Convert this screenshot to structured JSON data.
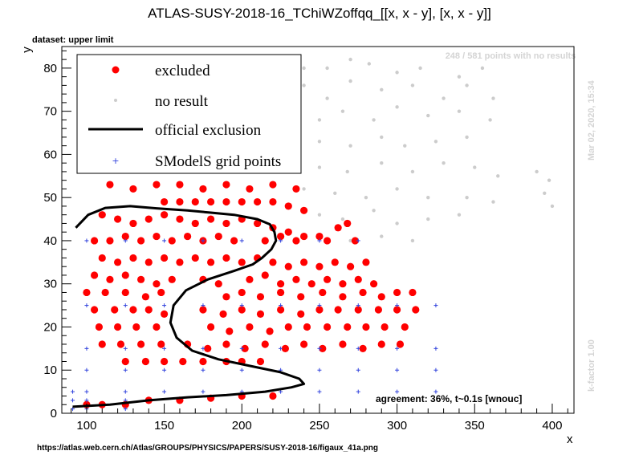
{
  "header": {
    "title": "ATLAS-SUSY-2018-16_TChiWZoffqq_[[x, x - y], [x, x - y]]",
    "dataset_label": "dataset: upper limit",
    "no_results_note": "248 / 581 points with no results",
    "date_stamp": "Mar 02, 2020, 15:34",
    "kfactor_stamp": "k-factor 1.00",
    "agreement_text": "agreement: 36%, t~0.1s [wnouc]",
    "source_url": "https://atlas.web.cern.ch/Atlas/GROUPS/PHYSICS/PAPERS/SUSY-2018-16/figaux_41a.png"
  },
  "legend": {
    "items": [
      {
        "label": "excluded",
        "kind": "red-dot"
      },
      {
        "label": "no result",
        "kind": "grey-dot"
      },
      {
        "label": "official exclusion",
        "kind": "black-line"
      },
      {
        "label": "SModelS grid points",
        "kind": "blue-cross"
      }
    ]
  },
  "colors": {
    "excluded": "#ff0000",
    "no_result": "#cccccc",
    "exclusion_line": "#000000",
    "grid_points": "#3344dd"
  },
  "chart_data": {
    "type": "scatter",
    "title": "ATLAS-SUSY-2018-16_TChiWZoffqq_[[x, x - y], [x, x - y]]",
    "xlabel": "x",
    "ylabel": "y",
    "xlim": [
      84,
      414
    ],
    "ylim": [
      0,
      85
    ],
    "x_ticks": [
      100,
      150,
      200,
      250,
      300,
      350,
      400
    ],
    "y_ticks": [
      0,
      10,
      20,
      30,
      40,
      50,
      60,
      70,
      80
    ],
    "grid": false,
    "legend_position": "top-left",
    "series": [
      {
        "name": "official exclusion",
        "kind": "line",
        "points": [
          [
            91,
            1.5
          ],
          [
            115,
            2
          ],
          [
            140,
            3
          ],
          [
            165,
            3.7
          ],
          [
            190,
            4.2
          ],
          [
            215,
            5
          ],
          [
            232,
            6
          ],
          [
            240,
            6.8
          ],
          [
            237,
            8
          ],
          [
            225,
            9.5
          ],
          [
            205,
            11
          ],
          [
            185,
            12.5
          ],
          [
            168,
            14.5
          ],
          [
            158,
            17.5
          ],
          [
            154,
            21
          ],
          [
            156,
            25
          ],
          [
            164,
            28.5
          ],
          [
            178,
            31
          ],
          [
            195,
            33
          ],
          [
            207,
            34.5
          ],
          [
            213,
            36
          ],
          [
            219,
            38
          ],
          [
            222,
            40
          ],
          [
            221,
            42
          ],
          [
            218,
            43.8
          ],
          [
            210,
            45
          ],
          [
            195,
            46
          ],
          [
            180,
            46.5
          ],
          [
            165,
            47
          ],
          [
            145,
            47.5
          ],
          [
            128,
            48
          ],
          [
            112,
            47.6
          ],
          [
            101,
            46
          ],
          [
            93,
            43
          ]
        ]
      },
      {
        "name": "SModelS grid points",
        "kind": "cross",
        "points": [
          [
            91,
            1
          ],
          [
            100,
            1
          ],
          [
            125,
            1
          ],
          [
            91,
            3
          ],
          [
            100,
            3
          ],
          [
            125,
            3
          ],
          [
            91,
            5
          ],
          [
            100,
            5
          ],
          [
            125,
            5
          ],
          [
            150,
            5
          ],
          [
            175,
            5
          ],
          [
            200,
            5
          ],
          [
            225,
            5
          ],
          [
            250,
            5
          ],
          [
            275,
            5
          ],
          [
            300,
            5
          ],
          [
            325,
            5
          ],
          [
            100,
            10
          ],
          [
            125,
            10
          ],
          [
            150,
            10
          ],
          [
            175,
            10
          ],
          [
            200,
            10
          ],
          [
            225,
            10
          ],
          [
            250,
            10
          ],
          [
            275,
            10
          ],
          [
            300,
            10
          ],
          [
            325,
            10
          ],
          [
            100,
            15
          ],
          [
            125,
            15
          ],
          [
            150,
            15
          ],
          [
            175,
            15
          ],
          [
            200,
            15
          ],
          [
            225,
            15
          ],
          [
            250,
            15
          ],
          [
            275,
            15
          ],
          [
            300,
            15
          ],
          [
            325,
            15
          ],
          [
            100,
            25
          ],
          [
            125,
            25
          ],
          [
            150,
            25
          ],
          [
            175,
            25
          ],
          [
            200,
            25
          ],
          [
            225,
            25
          ],
          [
            250,
            25
          ],
          [
            275,
            25
          ],
          [
            300,
            25
          ],
          [
            325,
            25
          ],
          [
            100,
            40
          ],
          [
            125,
            40
          ],
          [
            150,
            40
          ],
          [
            175,
            40
          ],
          [
            200,
            40
          ],
          [
            225,
            40
          ],
          [
            250,
            40
          ],
          [
            275,
            40
          ],
          [
            100,
            60
          ],
          [
            125,
            60
          ]
        ]
      },
      {
        "name": "no result",
        "kind": "dot",
        "points": [
          [
            220,
            80
          ],
          [
            240,
            80
          ],
          [
            255,
            80
          ],
          [
            270,
            82
          ],
          [
            282,
            81
          ],
          [
            300,
            79
          ],
          [
            315,
            80
          ],
          [
            340,
            78
          ],
          [
            355,
            80
          ],
          [
            240,
            76
          ],
          [
            255,
            73
          ],
          [
            270,
            77
          ],
          [
            290,
            75
          ],
          [
            310,
            76
          ],
          [
            330,
            73
          ],
          [
            345,
            76
          ],
          [
            362,
            73
          ],
          [
            230,
            70
          ],
          [
            250,
            68
          ],
          [
            265,
            70
          ],
          [
            285,
            68
          ],
          [
            300,
            71
          ],
          [
            320,
            69
          ],
          [
            340,
            70
          ],
          [
            360,
            68
          ],
          [
            235,
            64
          ],
          [
            250,
            63
          ],
          [
            270,
            62
          ],
          [
            290,
            64
          ],
          [
            305,
            62
          ],
          [
            325,
            63
          ],
          [
            345,
            64
          ],
          [
            232,
            58
          ],
          [
            250,
            57
          ],
          [
            268,
            56
          ],
          [
            290,
            58
          ],
          [
            310,
            56
          ],
          [
            330,
            58
          ],
          [
            350,
            57
          ],
          [
            365,
            55
          ],
          [
            240,
            52
          ],
          [
            260,
            51
          ],
          [
            280,
            50
          ],
          [
            300,
            52
          ],
          [
            320,
            50
          ],
          [
            345,
            50
          ],
          [
            362,
            49
          ],
          [
            250,
            46
          ],
          [
            265,
            45
          ],
          [
            285,
            47
          ],
          [
            300,
            44
          ],
          [
            320,
            45
          ],
          [
            340,
            46
          ],
          [
            270,
            40
          ],
          [
            290,
            41
          ],
          [
            310,
            40
          ],
          [
            395,
            51
          ],
          [
            398,
            54
          ],
          [
            400,
            48
          ],
          [
            390,
            56
          ]
        ]
      },
      {
        "name": "excluded",
        "kind": "dot",
        "points": [
          [
            100,
            2
          ],
          [
            110,
            2
          ],
          [
            125,
            2
          ],
          [
            140,
            3
          ],
          [
            160,
            3
          ],
          [
            180,
            3.5
          ],
          [
            200,
            4
          ],
          [
            220,
            4
          ],
          [
            110,
            46
          ],
          [
            120,
            45
          ],
          [
            130,
            44
          ],
          [
            140,
            45
          ],
          [
            150,
            46
          ],
          [
            160,
            45
          ],
          [
            170,
            44
          ],
          [
            180,
            45
          ],
          [
            190,
            44
          ],
          [
            200,
            45
          ],
          [
            210,
            44
          ],
          [
            220,
            43
          ],
          [
            230,
            42
          ],
          [
            240,
            41
          ],
          [
            250,
            41
          ],
          [
            255,
            40
          ],
          [
            262,
            43
          ],
          [
            268,
            44
          ],
          [
            273,
            40
          ],
          [
            105,
            40
          ],
          [
            115,
            40
          ],
          [
            125,
            41
          ],
          [
            135,
            40
          ],
          [
            145,
            41
          ],
          [
            155,
            40
          ],
          [
            165,
            41
          ],
          [
            175,
            40
          ],
          [
            185,
            41
          ],
          [
            195,
            40
          ],
          [
            215,
            40
          ],
          [
            225,
            41
          ],
          [
            235,
            40
          ],
          [
            110,
            36
          ],
          [
            120,
            35
          ],
          [
            130,
            36
          ],
          [
            140,
            35
          ],
          [
            150,
            36
          ],
          [
            160,
            35
          ],
          [
            170,
            36
          ],
          [
            180,
            35
          ],
          [
            190,
            36
          ],
          [
            200,
            35
          ],
          [
            210,
            36
          ],
          [
            220,
            35
          ],
          [
            230,
            34
          ],
          [
            240,
            35
          ],
          [
            250,
            34
          ],
          [
            260,
            35
          ],
          [
            270,
            34
          ],
          [
            280,
            35
          ],
          [
            105,
            32
          ],
          [
            115,
            31
          ],
          [
            125,
            32
          ],
          [
            135,
            31
          ],
          [
            145,
            30
          ],
          [
            155,
            31
          ],
          [
            175,
            31
          ],
          [
            185,
            30
          ],
          [
            205,
            31
          ],
          [
            215,
            32
          ],
          [
            225,
            30
          ],
          [
            235,
            31
          ],
          [
            245,
            30
          ],
          [
            255,
            31
          ],
          [
            265,
            30
          ],
          [
            275,
            31
          ],
          [
            285,
            30
          ],
          [
            100,
            28
          ],
          [
            112,
            28
          ],
          [
            125,
            28
          ],
          [
            138,
            27
          ],
          [
            148,
            28
          ],
          [
            190,
            27
          ],
          [
            200,
            28
          ],
          [
            212,
            27
          ],
          [
            225,
            28
          ],
          [
            238,
            27
          ],
          [
            252,
            28
          ],
          [
            265,
            27
          ],
          [
            278,
            28
          ],
          [
            290,
            27
          ],
          [
            300,
            28
          ],
          [
            310,
            28
          ],
          [
            105,
            24
          ],
          [
            118,
            24
          ],
          [
            130,
            24
          ],
          [
            140,
            24
          ],
          [
            150,
            23
          ],
          [
            175,
            24
          ],
          [
            188,
            23
          ],
          [
            200,
            24
          ],
          [
            212,
            23
          ],
          [
            225,
            24
          ],
          [
            238,
            23
          ],
          [
            250,
            24
          ],
          [
            262,
            24
          ],
          [
            275,
            24
          ],
          [
            288,
            24
          ],
          [
            300,
            24
          ],
          [
            312,
            24
          ],
          [
            108,
            20
          ],
          [
            120,
            20
          ],
          [
            132,
            20
          ],
          [
            145,
            20
          ],
          [
            180,
            20
          ],
          [
            192,
            19
          ],
          [
            205,
            20
          ],
          [
            218,
            19
          ],
          [
            230,
            20
          ],
          [
            242,
            20
          ],
          [
            255,
            20
          ],
          [
            268,
            20
          ],
          [
            280,
            20
          ],
          [
            292,
            20
          ],
          [
            305,
            20
          ],
          [
            110,
            16
          ],
          [
            122,
            16
          ],
          [
            135,
            16
          ],
          [
            148,
            16
          ],
          [
            165,
            16
          ],
          [
            178,
            15
          ],
          [
            190,
            16
          ],
          [
            202,
            15
          ],
          [
            215,
            16
          ],
          [
            228,
            15
          ],
          [
            240,
            16
          ],
          [
            252,
            15
          ],
          [
            265,
            16
          ],
          [
            278,
            15
          ],
          [
            290,
            16
          ],
          [
            302,
            16
          ],
          [
            125,
            12
          ],
          [
            138,
            12
          ],
          [
            150,
            12
          ],
          [
            162,
            12
          ],
          [
            175,
            12
          ],
          [
            190,
            12
          ],
          [
            200,
            12
          ],
          [
            212,
            12
          ],
          [
            150,
            49
          ],
          [
            160,
            49
          ],
          [
            170,
            49
          ],
          [
            180,
            49
          ],
          [
            190,
            49
          ],
          [
            200,
            49
          ],
          [
            210,
            49
          ],
          [
            220,
            49
          ],
          [
            230,
            48
          ],
          [
            240,
            47
          ],
          [
            115,
            53
          ],
          [
            130,
            52
          ],
          [
            145,
            53
          ],
          [
            160,
            53
          ],
          [
            175,
            52
          ],
          [
            190,
            53
          ],
          [
            205,
            52
          ],
          [
            220,
            53
          ],
          [
            235,
            52
          ]
        ]
      }
    ]
  }
}
